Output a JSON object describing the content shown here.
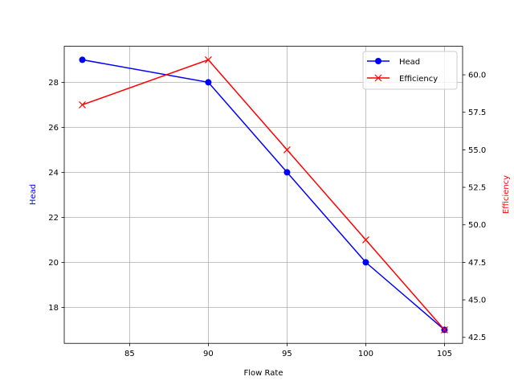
{
  "chart_data": {
    "type": "line",
    "xlabel": "Flow Rate",
    "x": [
      82,
      90,
      95,
      100,
      105
    ],
    "xlim": [
      80.85,
      106.15
    ],
    "xticks": [
      85,
      90,
      95,
      100,
      105
    ],
    "xtick_labels": [
      "85",
      "90",
      "95",
      "100",
      "105"
    ],
    "grid": true,
    "legend_position": "top-right",
    "series": [
      {
        "name": "Head",
        "axis": "left",
        "values": [
          29,
          28,
          24,
          20,
          17
        ],
        "color": "#0000ff",
        "marker": "circle"
      },
      {
        "name": "Efficiency",
        "axis": "right",
        "values": [
          58,
          61,
          55,
          49,
          43
        ],
        "color": "#ff0000",
        "marker": "x"
      }
    ],
    "left_axis": {
      "label": "Head",
      "color": "#0000ff",
      "ylim": [
        16.4,
        29.6
      ],
      "ticks": [
        18,
        20,
        22,
        24,
        26,
        28
      ],
      "tick_labels": [
        "18",
        "20",
        "22",
        "24",
        "26",
        "28"
      ]
    },
    "right_axis": {
      "label": "Efficiency",
      "color": "#ff0000",
      "ylim": [
        42.1,
        61.9
      ],
      "ticks": [
        42.5,
        45,
        47.5,
        50,
        52.5,
        55,
        57.5,
        60
      ],
      "tick_labels": [
        "42.5",
        "45.0",
        "47.5",
        "50.0",
        "52.5",
        "55.0",
        "57.5",
        "60.0"
      ]
    }
  }
}
